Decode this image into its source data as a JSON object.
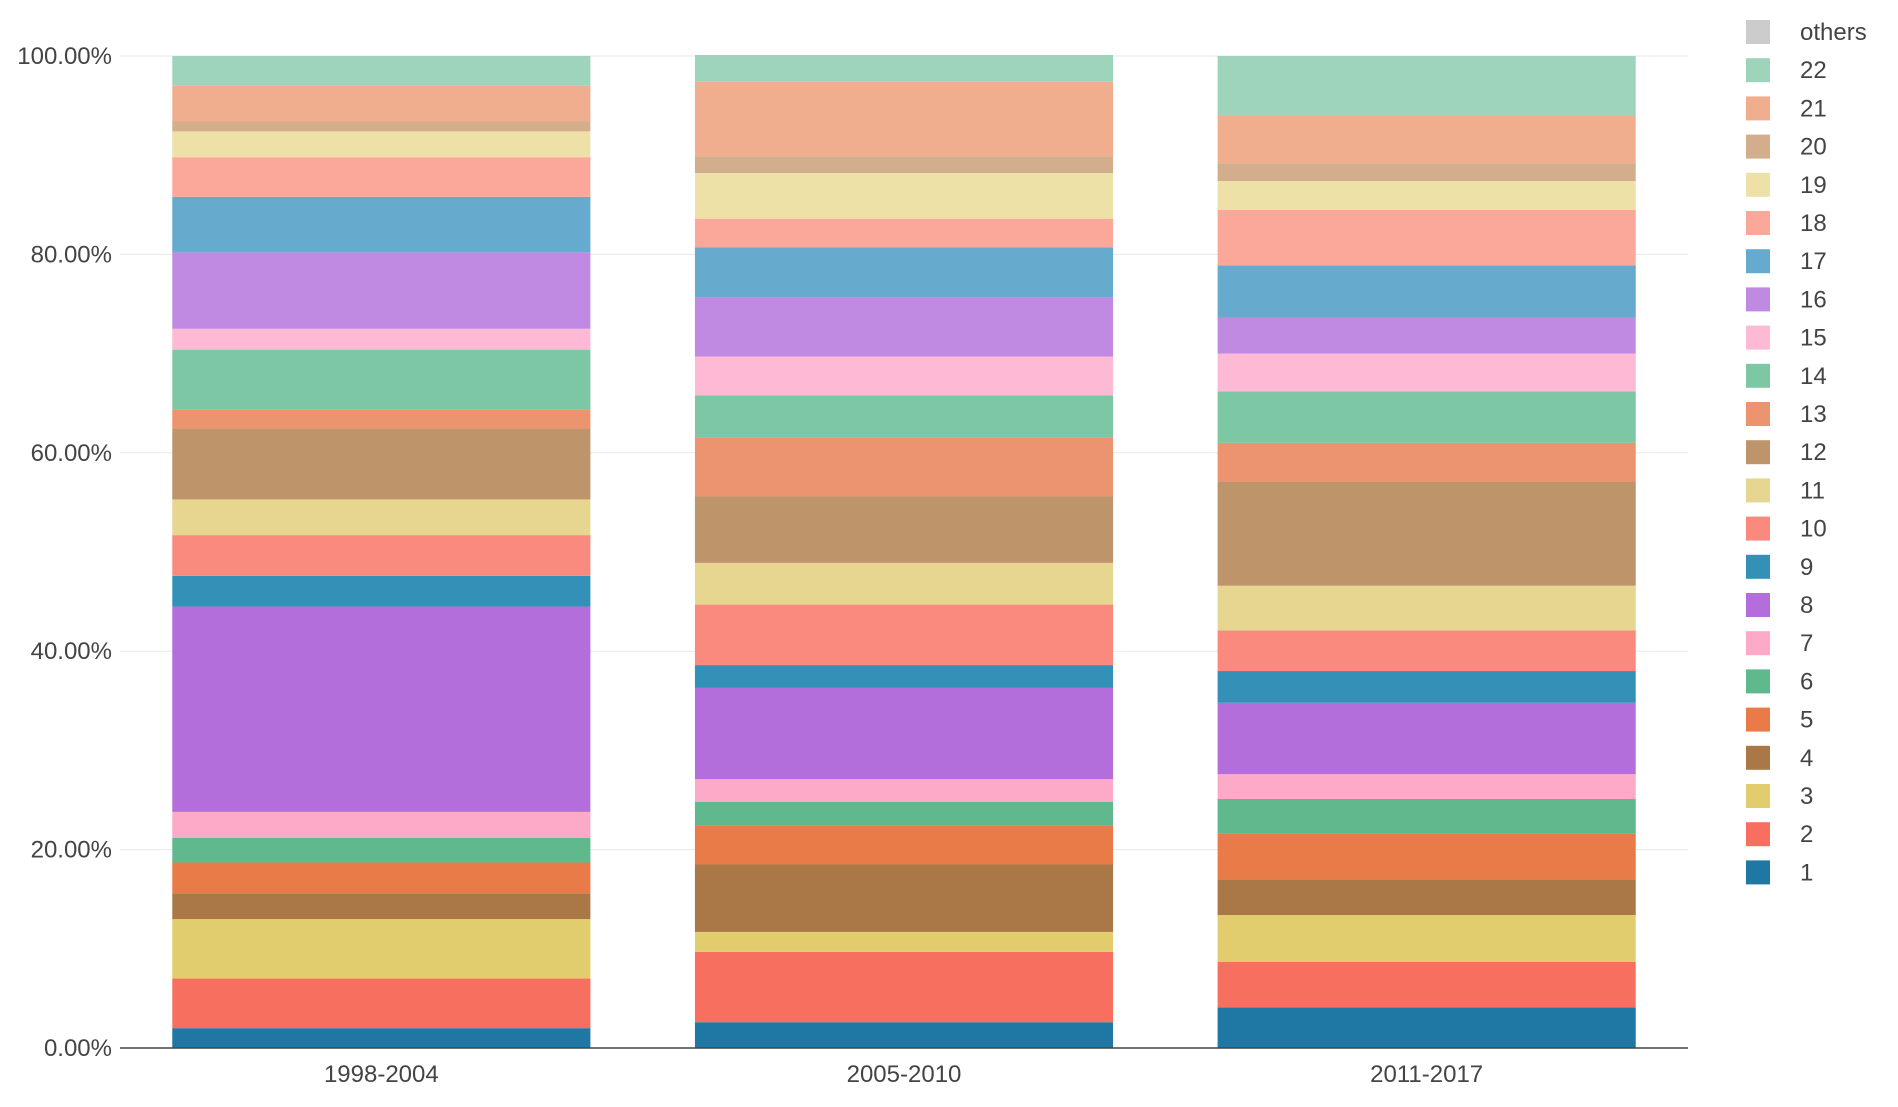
{
  "chart_data": {
    "type": "bar",
    "stacked": true,
    "categories": [
      "1998-2004",
      "2005-2010",
      "2011-2017"
    ],
    "ylim": [
      0,
      100
    ],
    "yticks": [
      "0.00%",
      "20.00%",
      "40.00%",
      "60.00%",
      "80.00%",
      "100.00%"
    ],
    "title": "",
    "xlabel": "",
    "ylabel": "",
    "grid": true,
    "legend_position": "right",
    "series": [
      {
        "name": "1",
        "color": "#1f77a4",
        "values": [
          2.0,
          2.6,
          4.1
        ]
      },
      {
        "name": "2",
        "color": "#f76f5f",
        "values": [
          5.0,
          7.1,
          4.6
        ]
      },
      {
        "name": "3",
        "color": "#e2cd6e",
        "values": [
          6.0,
          2.0,
          4.7
        ]
      },
      {
        "name": "4",
        "color": "#aa7847",
        "values": [
          2.6,
          6.8,
          3.6
        ]
      },
      {
        "name": "5",
        "color": "#e97b49",
        "values": [
          3.1,
          3.9,
          4.6
        ]
      },
      {
        "name": "6",
        "color": "#5fb98d",
        "values": [
          2.5,
          2.4,
          3.5
        ]
      },
      {
        "name": "7",
        "color": "#fda9c8",
        "values": [
          2.6,
          2.3,
          2.5
        ]
      },
      {
        "name": "8",
        "color": "#b36edc",
        "values": [
          20.7,
          9.2,
          7.2
        ]
      },
      {
        "name": "9",
        "color": "#3390b7",
        "values": [
          3.1,
          2.3,
          3.2
        ]
      },
      {
        "name": "10",
        "color": "#f98a7d",
        "values": [
          4.1,
          6.1,
          4.1
        ]
      },
      {
        "name": "11",
        "color": "#e6d690",
        "values": [
          3.6,
          4.2,
          4.5
        ]
      },
      {
        "name": "12",
        "color": "#be946a",
        "values": [
          7.1,
          6.7,
          10.5
        ]
      },
      {
        "name": "13",
        "color": "#ec9470",
        "values": [
          2.0,
          5.9,
          3.9
        ]
      },
      {
        "name": "14",
        "color": "#7ec7a4",
        "values": [
          6.0,
          4.3,
          5.2
        ]
      },
      {
        "name": "15",
        "color": "#feb9d4",
        "values": [
          2.1,
          3.9,
          3.8
        ]
      },
      {
        "name": "16",
        "color": "#c08ae3",
        "values": [
          7.7,
          6.0,
          3.6
        ]
      },
      {
        "name": "17",
        "color": "#66aacd",
        "values": [
          5.6,
          5.0,
          5.3
        ]
      },
      {
        "name": "18",
        "color": "#fba79a",
        "values": [
          4.0,
          2.9,
          5.6
        ]
      },
      {
        "name": "19",
        "color": "#ede1a8",
        "values": [
          2.6,
          4.6,
          2.9
        ]
      },
      {
        "name": "20",
        "color": "#d3ae8c",
        "values": [
          1.0,
          1.7,
          1.8
        ]
      },
      {
        "name": "21",
        "color": "#f1ae8e",
        "values": [
          3.6,
          7.5,
          4.8
        ]
      },
      {
        "name": "22",
        "color": "#9ed4bb",
        "values": [
          3.0,
          2.7,
          6.0
        ]
      },
      {
        "name": "others",
        "color": "#cccccc",
        "values": [
          0,
          0,
          0
        ]
      }
    ]
  }
}
